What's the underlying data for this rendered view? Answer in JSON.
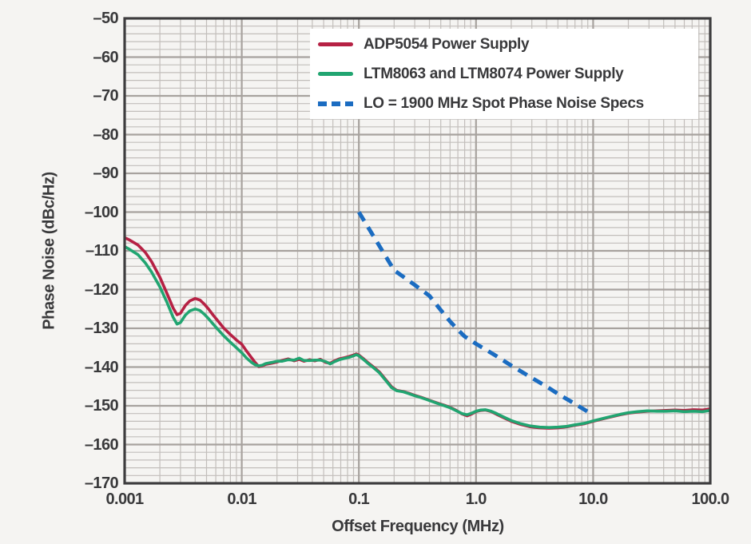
{
  "figure": {
    "background_color": "#f5f4f2",
    "plot_frame_color": "#3d3c3e",
    "grid_minor_color": "#c2bebb",
    "grid_major_color": "#a7a29e",
    "text_color": "#39393b",
    "legend_background": "#ffffff"
  },
  "chart_data": {
    "type": "line",
    "title": "",
    "xlabel": "Offset Frequency (MHz)",
    "ylabel": "Phase Noise (dBc/Hz)",
    "x_scale": "log",
    "xlim": [
      0.001,
      100
    ],
    "ylim": [
      -170,
      -50
    ],
    "grid": {
      "visible": true,
      "y_minor_step_db": 2,
      "y_major_step_db": 10,
      "x_minor": "multiples 2-9 per decade",
      "x_major": "decades"
    },
    "legend_position": "top-right-inside",
    "xticks": {
      "values": [
        0.001,
        0.01,
        0.1,
        1,
        10,
        100
      ],
      "labels": [
        "0.001",
        "0.01",
        "0.1",
        "1.0",
        "10.0",
        "100.0"
      ]
    },
    "yticks": {
      "values": [
        -50,
        -60,
        -70,
        -80,
        -90,
        -100,
        -110,
        -120,
        -130,
        -140,
        -150,
        -160,
        -170
      ],
      "labels": [
        "–50",
        "–60",
        "–70",
        "–80",
        "–90",
        "–100",
        "–110",
        "–120",
        "–130",
        "–140",
        "–150",
        "–160",
        "–170"
      ]
    },
    "series": [
      {
        "name": "ADP5054 Power Supply",
        "color": "#b62144",
        "style": "solid",
        "width": 3.6,
        "points": [
          [
            0.001,
            -106.6
          ],
          [
            0.0011,
            -107.2
          ],
          [
            0.0013,
            -108.5
          ],
          [
            0.0015,
            -110.4
          ],
          [
            0.0017,
            -112.8
          ],
          [
            0.002,
            -116.8
          ],
          [
            0.0023,
            -121.0
          ],
          [
            0.0026,
            -124.8
          ],
          [
            0.0028,
            -126.5
          ],
          [
            0.003,
            -126.1
          ],
          [
            0.0033,
            -124.1
          ],
          [
            0.0036,
            -122.9
          ],
          [
            0.004,
            -122.3
          ],
          [
            0.0044,
            -122.7
          ],
          [
            0.0048,
            -123.8
          ],
          [
            0.0052,
            -125.0
          ],
          [
            0.0057,
            -126.6
          ],
          [
            0.0063,
            -128.2
          ],
          [
            0.007,
            -129.9
          ],
          [
            0.008,
            -131.6
          ],
          [
            0.009,
            -133.0
          ],
          [
            0.01,
            -134.1
          ],
          [
            0.011,
            -135.9
          ],
          [
            0.012,
            -137.4
          ],
          [
            0.013,
            -138.8
          ],
          [
            0.014,
            -139.9
          ],
          [
            0.015,
            -139.7
          ],
          [
            0.016,
            -139.3
          ],
          [
            0.018,
            -139.0
          ],
          [
            0.02,
            -138.7
          ],
          [
            0.022,
            -138.3
          ],
          [
            0.025,
            -137.9
          ],
          [
            0.028,
            -138.4
          ],
          [
            0.031,
            -138.0
          ],
          [
            0.034,
            -138.5
          ],
          [
            0.038,
            -138.1
          ],
          [
            0.042,
            -138.4
          ],
          [
            0.047,
            -138.0
          ],
          [
            0.052,
            -138.8
          ],
          [
            0.057,
            -139.0
          ],
          [
            0.062,
            -138.4
          ],
          [
            0.068,
            -137.9
          ],
          [
            0.075,
            -137.6
          ],
          [
            0.082,
            -137.3
          ],
          [
            0.09,
            -136.9
          ],
          [
            0.095,
            -136.6
          ],
          [
            0.1,
            -136.9
          ],
          [
            0.11,
            -137.9
          ],
          [
            0.12,
            -138.9
          ],
          [
            0.135,
            -140.1
          ],
          [
            0.15,
            -141.3
          ],
          [
            0.17,
            -143.3
          ],
          [
            0.19,
            -145.1
          ],
          [
            0.21,
            -146.0
          ],
          [
            0.24,
            -146.3
          ],
          [
            0.27,
            -146.8
          ],
          [
            0.3,
            -147.3
          ],
          [
            0.34,
            -147.8
          ],
          [
            0.38,
            -148.3
          ],
          [
            0.43,
            -148.9
          ],
          [
            0.48,
            -149.4
          ],
          [
            0.54,
            -149.9
          ],
          [
            0.6,
            -150.4
          ],
          [
            0.68,
            -151.2
          ],
          [
            0.76,
            -152.1
          ],
          [
            0.84,
            -152.6
          ],
          [
            0.92,
            -152.1
          ],
          [
            1.0,
            -151.5
          ],
          [
            1.1,
            -151.2
          ],
          [
            1.2,
            -151.1
          ],
          [
            1.35,
            -151.5
          ],
          [
            1.5,
            -152.2
          ],
          [
            1.7,
            -153.0
          ],
          [
            2.0,
            -154.0
          ],
          [
            2.4,
            -154.8
          ],
          [
            2.9,
            -155.4
          ],
          [
            3.5,
            -155.7
          ],
          [
            4.2,
            -155.8
          ],
          [
            5.0,
            -155.7
          ],
          [
            6.0,
            -155.4
          ],
          [
            7.0,
            -155.0
          ],
          [
            8.5,
            -154.6
          ],
          [
            10,
            -154.0
          ],
          [
            12,
            -153.4
          ],
          [
            14,
            -152.9
          ],
          [
            17,
            -152.3
          ],
          [
            20,
            -151.9
          ],
          [
            24,
            -151.6
          ],
          [
            29,
            -151.4
          ],
          [
            35,
            -151.3
          ],
          [
            42,
            -151.2
          ],
          [
            50,
            -151.1
          ],
          [
            60,
            -151.2
          ],
          [
            72,
            -151.0
          ],
          [
            86,
            -151.1
          ],
          [
            100,
            -150.8
          ]
        ]
      },
      {
        "name": "LTM8063 and LTM8074 Power Supply",
        "color": "#21a571",
        "style": "solid",
        "width": 3.6,
        "points": [
          [
            0.001,
            -108.9
          ],
          [
            0.0011,
            -109.6
          ],
          [
            0.0013,
            -111.0
          ],
          [
            0.0015,
            -113.1
          ],
          [
            0.0017,
            -115.5
          ],
          [
            0.002,
            -119.3
          ],
          [
            0.0023,
            -123.3
          ],
          [
            0.0026,
            -127.2
          ],
          [
            0.0028,
            -128.9
          ],
          [
            0.003,
            -128.5
          ],
          [
            0.0033,
            -126.6
          ],
          [
            0.0036,
            -125.5
          ],
          [
            0.004,
            -125.0
          ],
          [
            0.0044,
            -125.4
          ],
          [
            0.0048,
            -126.4
          ],
          [
            0.0052,
            -127.5
          ],
          [
            0.0057,
            -128.9
          ],
          [
            0.0063,
            -130.4
          ],
          [
            0.007,
            -131.9
          ],
          [
            0.008,
            -133.6
          ],
          [
            0.009,
            -135.0
          ],
          [
            0.01,
            -136.3
          ],
          [
            0.011,
            -137.7
          ],
          [
            0.012,
            -138.7
          ],
          [
            0.013,
            -139.4
          ],
          [
            0.014,
            -139.7
          ],
          [
            0.015,
            -139.5
          ],
          [
            0.016,
            -139.1
          ],
          [
            0.018,
            -138.8
          ],
          [
            0.02,
            -138.5
          ],
          [
            0.022,
            -138.5
          ],
          [
            0.025,
            -138.1
          ],
          [
            0.028,
            -138.2
          ],
          [
            0.031,
            -137.7
          ],
          [
            0.034,
            -138.3
          ],
          [
            0.038,
            -138.3
          ],
          [
            0.042,
            -138.2
          ],
          [
            0.047,
            -138.2
          ],
          [
            0.052,
            -138.6
          ],
          [
            0.057,
            -139.2
          ],
          [
            0.062,
            -138.6
          ],
          [
            0.068,
            -138.1
          ],
          [
            0.075,
            -137.8
          ],
          [
            0.082,
            -137.5
          ],
          [
            0.09,
            -137.1
          ],
          [
            0.095,
            -136.8
          ],
          [
            0.1,
            -137.1
          ],
          [
            0.11,
            -138.1
          ],
          [
            0.12,
            -139.1
          ],
          [
            0.135,
            -140.3
          ],
          [
            0.15,
            -141.5
          ],
          [
            0.17,
            -143.5
          ],
          [
            0.19,
            -145.3
          ],
          [
            0.21,
            -146.1
          ],
          [
            0.24,
            -146.4
          ],
          [
            0.27,
            -146.9
          ],
          [
            0.3,
            -147.4
          ],
          [
            0.34,
            -147.9
          ],
          [
            0.38,
            -148.4
          ],
          [
            0.43,
            -149.0
          ],
          [
            0.48,
            -149.5
          ],
          [
            0.54,
            -150.0
          ],
          [
            0.6,
            -150.5
          ],
          [
            0.68,
            -151.3
          ],
          [
            0.76,
            -152.0
          ],
          [
            0.84,
            -152.3
          ],
          [
            0.92,
            -151.9
          ],
          [
            1.0,
            -151.4
          ],
          [
            1.1,
            -151.1
          ],
          [
            1.2,
            -151.0
          ],
          [
            1.35,
            -151.4
          ],
          [
            1.5,
            -152.0
          ],
          [
            1.7,
            -152.8
          ],
          [
            2.0,
            -153.8
          ],
          [
            2.4,
            -154.6
          ],
          [
            2.9,
            -155.2
          ],
          [
            3.5,
            -155.5
          ],
          [
            4.2,
            -155.6
          ],
          [
            5.0,
            -155.5
          ],
          [
            6.0,
            -155.3
          ],
          [
            7.0,
            -154.9
          ],
          [
            8.5,
            -154.5
          ],
          [
            10,
            -153.9
          ],
          [
            12,
            -153.3
          ],
          [
            14,
            -152.8
          ],
          [
            17,
            -152.2
          ],
          [
            20,
            -151.8
          ],
          [
            24,
            -151.5
          ],
          [
            29,
            -151.3
          ],
          [
            35,
            -151.4
          ],
          [
            42,
            -151.4
          ],
          [
            50,
            -151.3
          ],
          [
            60,
            -151.5
          ],
          [
            72,
            -151.4
          ],
          [
            86,
            -151.5
          ],
          [
            100,
            -151.2
          ]
        ]
      },
      {
        "name": "LO = 1900 MHz Spot Phase Noise Specs",
        "color": "#1b6cc1",
        "style": "dashed",
        "width": 5,
        "points": [
          [
            0.1,
            -100.0
          ],
          [
            0.2,
            -115.0
          ],
          [
            0.25,
            -117.1
          ],
          [
            0.3,
            -118.8
          ],
          [
            0.4,
            -121.6
          ],
          [
            0.5,
            -125.3
          ],
          [
            0.6,
            -128.2
          ],
          [
            0.7,
            -130.4
          ],
          [
            0.8,
            -132.1
          ],
          [
            1.0,
            -134.0
          ],
          [
            1.5,
            -137.2
          ],
          [
            2.0,
            -139.6
          ],
          [
            3.0,
            -142.8
          ],
          [
            4.0,
            -145.0
          ],
          [
            5.0,
            -146.9
          ],
          [
            7.0,
            -149.5
          ],
          [
            10,
            -152.4
          ]
        ]
      }
    ]
  }
}
